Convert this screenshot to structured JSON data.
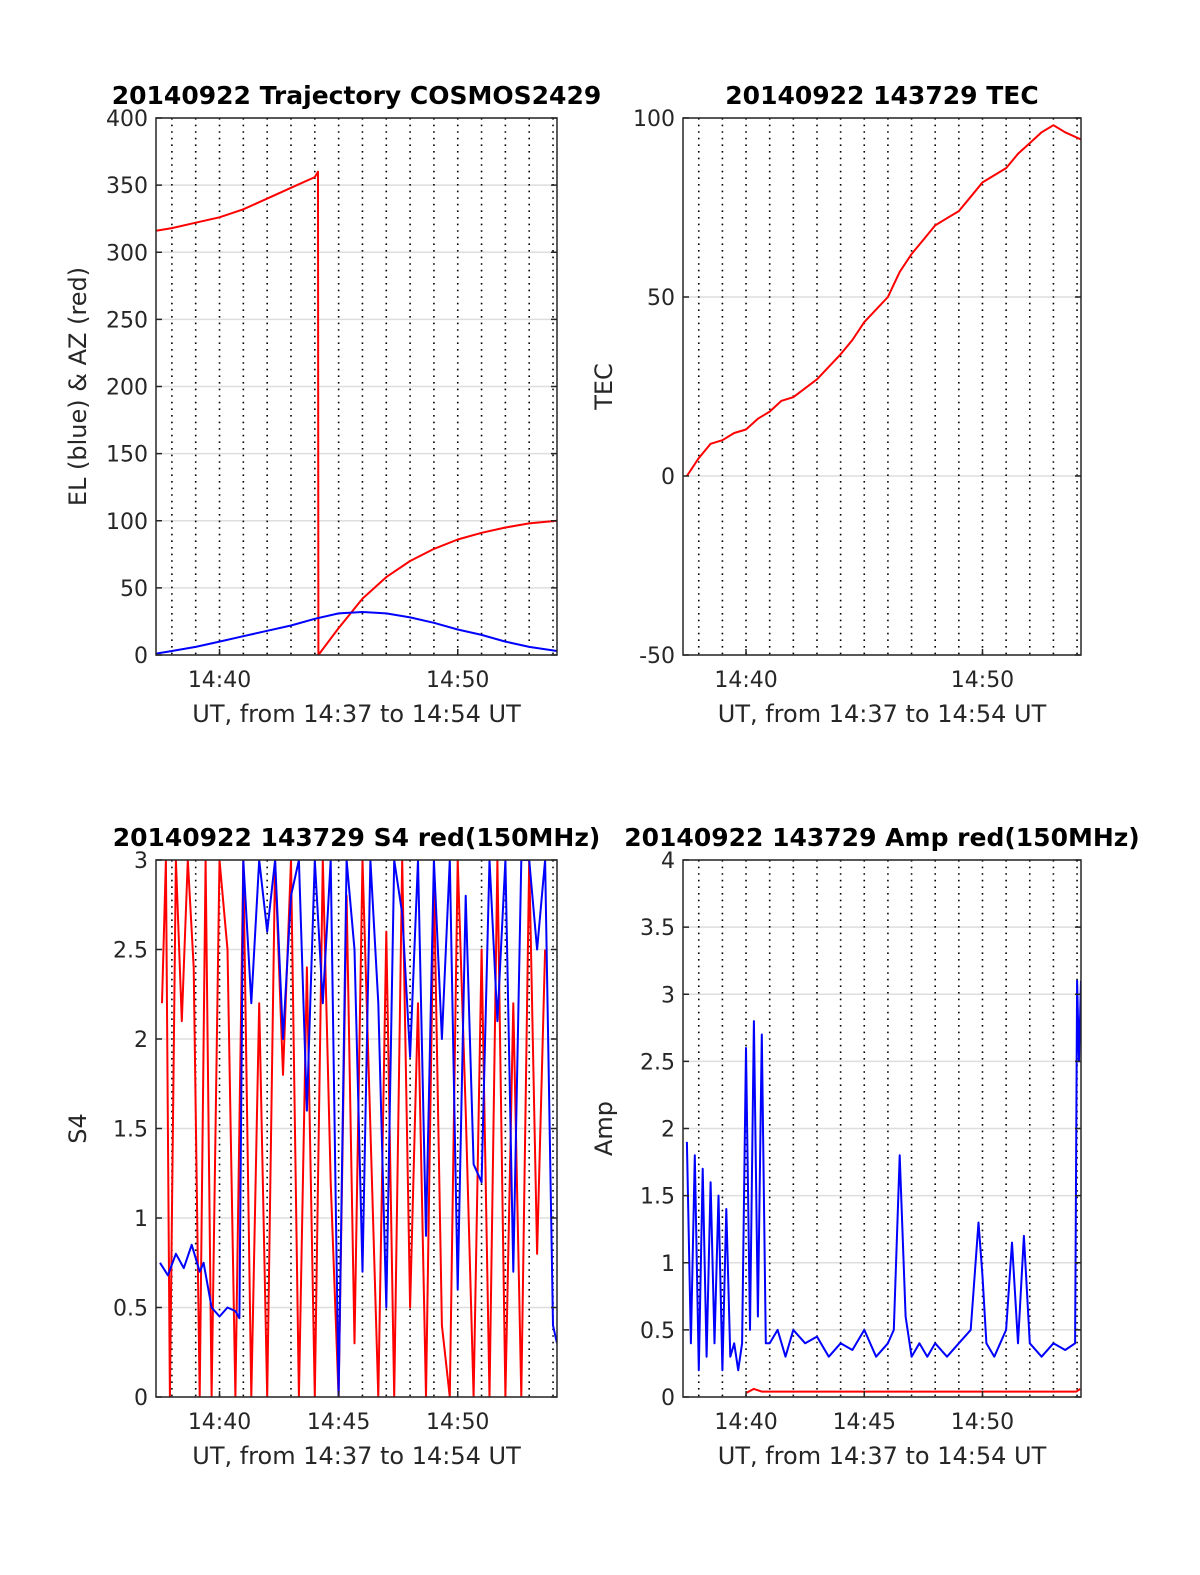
{
  "figure": {
    "background": "#ffffff",
    "red": "#ff0000",
    "blue": "#0000ff",
    "grid_color": "#000000"
  },
  "chart_data": [
    {
      "type": "line",
      "title": "20140922 Trajectory COSMOS2429",
      "xlabel": "UT, from 14:37 to 14:54 UT",
      "ylabel": "EL (blue) & AZ (red)",
      "xlim": [
        "14:37:20",
        "14:54:10"
      ],
      "ylim": [
        0,
        400
      ],
      "xticks": [
        "14:40",
        "14:50"
      ],
      "yticks": [
        "0",
        "50",
        "100",
        "150",
        "200",
        "250",
        "300",
        "350",
        "400"
      ],
      "grid": "dotted vertical every minute, light horizontal gridlines",
      "series": [
        {
          "name": "AZ (red)",
          "color": "#ff0000",
          "x": [
            "14:37:20",
            "14:38:00",
            "14:39:00",
            "14:40:00",
            "14:41:00",
            "14:42:00",
            "14:43:00",
            "14:44:00",
            "14:44:08",
            "14:44:09",
            "14:45:00",
            "14:46:00",
            "14:47:00",
            "14:48:00",
            "14:49:00",
            "14:50:00",
            "14:51:00",
            "14:52:00",
            "14:53:00",
            "14:54:10"
          ],
          "y": [
            316,
            318,
            322,
            326,
            332,
            340,
            348,
            356,
            360,
            0,
            20,
            42,
            58,
            70,
            79,
            86,
            91,
            95,
            98,
            100
          ]
        },
        {
          "name": "EL (blue)",
          "color": "#0000ff",
          "x": [
            "14:37:20",
            "14:38:00",
            "14:39:00",
            "14:40:00",
            "14:41:00",
            "14:42:00",
            "14:43:00",
            "14:44:00",
            "14:45:00",
            "14:46:00",
            "14:47:00",
            "14:48:00",
            "14:49:00",
            "14:50:00",
            "14:51:00",
            "14:52:00",
            "14:53:00",
            "14:54:10"
          ],
          "y": [
            1,
            3,
            6,
            10,
            14,
            18,
            22,
            27,
            31,
            32,
            31,
            28,
            24,
            19,
            15,
            10,
            6,
            3
          ]
        }
      ]
    },
    {
      "type": "line",
      "title": "20140922 143729 TEC",
      "xlabel": "UT, from 14:37 to 14:54 UT",
      "ylabel": "TEC",
      "xlim": [
        "14:37:20",
        "14:54:10"
      ],
      "ylim": [
        -50,
        100
      ],
      "xticks": [
        "14:40",
        "14:50"
      ],
      "yticks": [
        "-50",
        "0",
        "50",
        "100"
      ],
      "series": [
        {
          "color": "#ff0000",
          "x": [
            "14:37:30",
            "14:38:00",
            "14:38:30",
            "14:39:00",
            "14:39:30",
            "14:40:00",
            "14:40:30",
            "14:41:00",
            "14:41:30",
            "14:42:00",
            "14:43:00",
            "14:44:00",
            "14:44:30",
            "14:45:00",
            "14:46:00",
            "14:46:30",
            "14:47:00",
            "14:47:30",
            "14:48:00",
            "14:48:30",
            "14:49:00",
            "14:49:30",
            "14:50:00",
            "14:51:00",
            "14:51:30",
            "14:52:00",
            "14:52:30",
            "14:53:00",
            "14:53:30",
            "14:54:10"
          ],
          "y": [
            0,
            5,
            9,
            10,
            12,
            13,
            16,
            18,
            21,
            22,
            27,
            34,
            38,
            43,
            50,
            57,
            62,
            66,
            70,
            72,
            74,
            78,
            82,
            86,
            90,
            93,
            96,
            98,
            96,
            94
          ]
        }
      ]
    },
    {
      "type": "line",
      "title": "20140922 143729 S4 red(150MHz)",
      "xlabel": "UT, from 14:37 to 14:54 UT",
      "ylabel": "S4",
      "xlim": [
        "14:37:20",
        "14:54:10"
      ],
      "ylim": [
        0,
        3
      ],
      "xticks": [
        "14:40",
        "14:45",
        "14:50"
      ],
      "yticks": [
        "0",
        "0.5",
        "1",
        "1.5",
        "2",
        "2.5",
        "3"
      ],
      "series": [
        {
          "color": "#ff0000",
          "x": [
            "14:37:35",
            "14:37:45",
            "14:37:55",
            "14:38:10",
            "14:38:25",
            "14:38:40",
            "14:38:55",
            "14:39:10",
            "14:39:25",
            "14:39:40",
            "14:40:00",
            "14:40:20",
            "14:40:40",
            "14:41:00",
            "14:41:20",
            "14:41:40",
            "14:42:00",
            "14:42:20",
            "14:42:40",
            "14:43:00",
            "14:43:20",
            "14:43:40",
            "14:44:00",
            "14:44:20",
            "14:44:40",
            "14:45:00",
            "14:45:20",
            "14:45:40",
            "14:46:00",
            "14:46:20",
            "14:46:40",
            "14:47:00",
            "14:47:20",
            "14:47:40",
            "14:48:00",
            "14:48:20",
            "14:48:40",
            "14:49:00",
            "14:49:20",
            "14:49:40",
            "14:50:00",
            "14:50:20",
            "14:50:40",
            "14:51:00",
            "14:51:20",
            "14:51:40",
            "14:52:00",
            "14:52:20",
            "14:52:40",
            "14:53:00",
            "14:53:20",
            "14:53:40"
          ],
          "y": [
            2.2,
            3,
            0,
            3,
            2.1,
            3,
            2.4,
            0,
            3,
            0,
            3,
            2.5,
            0,
            3,
            0,
            2.2,
            0,
            3,
            1.8,
            3,
            0,
            2.4,
            0,
            3,
            1.2,
            0,
            2.8,
            0.3,
            3,
            1.5,
            0,
            2.6,
            0,
            3,
            0.5,
            2.2,
            0,
            2.9,
            0.4,
            0,
            3,
            1.6,
            0,
            2.5,
            0,
            3,
            0,
            2.2,
            0,
            3,
            0.8,
            2.5
          ]
        },
        {
          "color": "#0000ff",
          "x": [
            "14:37:30",
            "14:37:50",
            "14:38:10",
            "14:38:30",
            "14:38:50",
            "14:39:10",
            "14:39:20",
            "14:39:40",
            "14:40:00",
            "14:40:20",
            "14:40:40",
            "14:40:50",
            "14:41:00",
            "14:41:20",
            "14:41:40",
            "14:42:00",
            "14:42:20",
            "14:42:40",
            "14:43:00",
            "14:43:20",
            "14:43:40",
            "14:44:00",
            "14:44:20",
            "14:44:40",
            "14:45:00",
            "14:45:20",
            "14:45:40",
            "14:46:00",
            "14:46:20",
            "14:46:40",
            "14:47:00",
            "14:47:20",
            "14:47:40",
            "14:48:00",
            "14:48:20",
            "14:48:40",
            "14:49:00",
            "14:49:20",
            "14:49:40",
            "14:50:00",
            "14:50:20",
            "14:50:40",
            "14:51:00",
            "14:51:20",
            "14:51:40",
            "14:52:00",
            "14:52:20",
            "14:52:40",
            "14:53:00",
            "14:53:20",
            "14:53:40",
            "14:54:00",
            "14:54:10"
          ],
          "y": [
            0.75,
            0.68,
            0.8,
            0.72,
            0.85,
            0.7,
            0.75,
            0.5,
            0.45,
            0.5,
            0.48,
            0.44,
            3,
            2.2,
            3,
            2.6,
            3,
            2,
            2.8,
            3,
            1.6,
            3,
            2.2,
            3,
            0,
            3,
            2.5,
            0.7,
            3,
            2.2,
            0.5,
            3,
            2.7,
            1.9,
            3,
            0.9,
            3,
            2,
            3,
            0.6,
            2.8,
            1.3,
            1.2,
            3,
            2.1,
            3,
            0.7,
            3,
            3,
            2.5,
            3,
            0.4,
            0.3
          ]
        }
      ]
    },
    {
      "type": "line",
      "title": "20140922 143729 Amp red(150MHz)",
      "xlabel": "UT, from 14:37 to 14:54 UT",
      "ylabel": "Amp",
      "xlim": [
        "14:37:20",
        "14:54:10"
      ],
      "ylim": [
        0,
        4
      ],
      "xticks": [
        "14:40",
        "14:45",
        "14:50"
      ],
      "yticks": [
        "0",
        "0.5",
        "1",
        "1.5",
        "2",
        "2.5",
        "3",
        "3.5",
        "4"
      ],
      "series": [
        {
          "color": "#0000ff",
          "x": [
            "14:37:30",
            "14:37:40",
            "14:37:50",
            "14:38:00",
            "14:38:10",
            "14:38:20",
            "14:38:30",
            "14:38:40",
            "14:38:50",
            "14:39:00",
            "14:39:10",
            "14:39:20",
            "14:39:30",
            "14:39:40",
            "14:39:50",
            "14:40:00",
            "14:40:10",
            "14:40:20",
            "14:40:30",
            "14:40:40",
            "14:40:50",
            "14:41:00",
            "14:41:20",
            "14:41:40",
            "14:42:00",
            "14:42:30",
            "14:43:00",
            "14:43:30",
            "14:44:00",
            "14:44:30",
            "14:45:00",
            "14:45:30",
            "14:46:00",
            "14:46:15",
            "14:46:30",
            "14:46:45",
            "14:47:00",
            "14:47:20",
            "14:47:40",
            "14:48:00",
            "14:48:30",
            "14:49:00",
            "14:49:30",
            "14:49:50",
            "14:50:00",
            "14:50:10",
            "14:50:30",
            "14:51:00",
            "14:51:15",
            "14:51:30",
            "14:51:45",
            "14:52:00",
            "14:52:30",
            "14:53:00",
            "14:53:30",
            "14:53:55",
            "14:54:00",
            "14:54:05",
            "14:54:10"
          ],
          "y": [
            1.9,
            0.4,
            1.8,
            0.2,
            1.7,
            0.3,
            1.6,
            0.4,
            1.5,
            0.2,
            1.4,
            0.3,
            0.4,
            0.2,
            0.4,
            2.6,
            0.5,
            2.8,
            0.6,
            2.7,
            0.4,
            0.4,
            0.5,
            0.3,
            0.5,
            0.4,
            0.45,
            0.3,
            0.4,
            0.35,
            0.5,
            0.3,
            0.4,
            0.5,
            1.8,
            0.6,
            0.3,
            0.4,
            0.3,
            0.4,
            0.3,
            0.4,
            0.5,
            1.3,
            0.9,
            0.4,
            0.3,
            0.5,
            1.15,
            0.4,
            1.2,
            0.4,
            0.3,
            0.4,
            0.35,
            0.4,
            3.1,
            2.5,
            3.1
          ]
        },
        {
          "color": "#ff0000",
          "x": [
            "14:40:00",
            "14:40:20",
            "14:40:40",
            "14:53:58",
            "14:54:08"
          ],
          "y": [
            0.03,
            0.06,
            0.04,
            0.04,
            0.06
          ]
        }
      ]
    }
  ]
}
